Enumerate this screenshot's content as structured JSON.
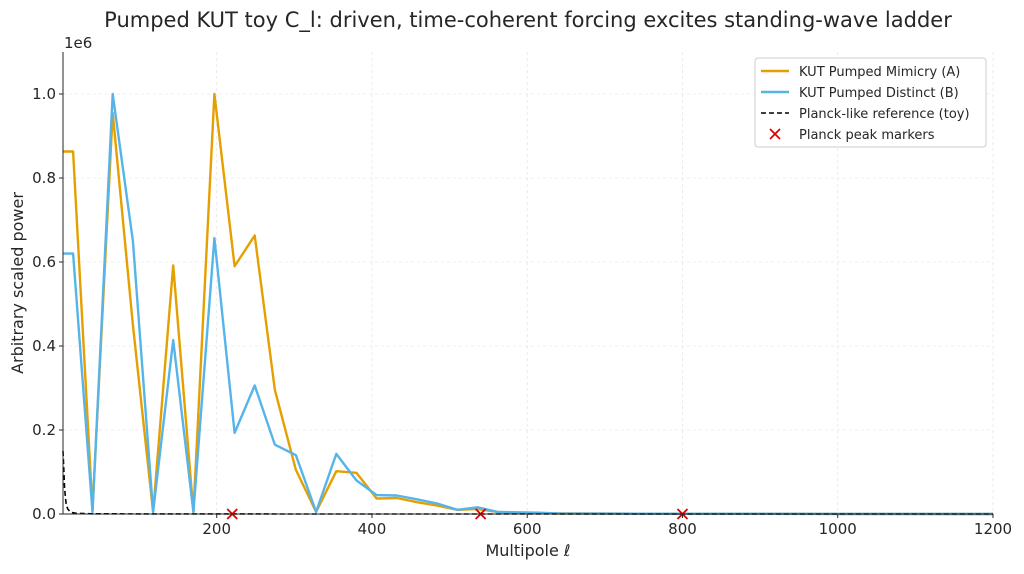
{
  "chart_data": {
    "type": "line",
    "title": "Pumped KUT toy C_l: driven, time-coherent forcing excites standing-wave ladder",
    "xlabel": "Multipole ℓ",
    "ylabel": "Arbitrary scaled power",
    "y_multiplier_label": "1e6",
    "xlim": [
      2,
      1200
    ],
    "ylim": [
      0,
      1100000
    ],
    "x_ticks": [
      200,
      400,
      600,
      800,
      1000,
      1200
    ],
    "y_ticks": [
      0,
      200000,
      400000,
      600000,
      800000,
      1000000
    ],
    "y_tick_labels": [
      "0.0",
      "0.2",
      "0.4",
      "0.6",
      "0.8",
      "1.0"
    ],
    "grid": true,
    "legend_position": "top-right",
    "series": [
      {
        "name": "KUT Pumped Mimicry (A)",
        "color": "#E69F00",
        "style": "solid",
        "points": [
          [
            2,
            863000
          ],
          [
            15,
            863000
          ],
          [
            40,
            10000
          ],
          [
            66,
            955000
          ],
          [
            92,
            450000
          ],
          [
            118,
            5000
          ],
          [
            144,
            592000
          ],
          [
            170,
            5000
          ],
          [
            197,
            1000000
          ],
          [
            223,
            590000
          ],
          [
            249,
            663000
          ],
          [
            275,
            295000
          ],
          [
            302,
            105000
          ],
          [
            328,
            5000
          ],
          [
            354,
            102000
          ],
          [
            380,
            98000
          ],
          [
            406,
            37000
          ],
          [
            432,
            38000
          ],
          [
            458,
            28000
          ],
          [
            484,
            20000
          ],
          [
            510,
            10000
          ],
          [
            536,
            12000
          ],
          [
            562,
            5000
          ],
          [
            588,
            3000
          ],
          [
            614,
            2000
          ],
          [
            640,
            1500
          ],
          [
            700,
            1000
          ],
          [
            800,
            500
          ],
          [
            1000,
            200
          ],
          [
            1200,
            100
          ]
        ]
      },
      {
        "name": "KUT Pumped Distinct (B)",
        "color": "#56B4E9",
        "style": "solid",
        "points": [
          [
            2,
            620000
          ],
          [
            15,
            620000
          ],
          [
            40,
            5000
          ],
          [
            66,
            1000000
          ],
          [
            92,
            650000
          ],
          [
            118,
            5000
          ],
          [
            144,
            414000
          ],
          [
            170,
            5000
          ],
          [
            197,
            657000
          ],
          [
            223,
            193000
          ],
          [
            249,
            306000
          ],
          [
            275,
            165000
          ],
          [
            302,
            140000
          ],
          [
            328,
            5000
          ],
          [
            354,
            143000
          ],
          [
            380,
            80000
          ],
          [
            406,
            45000
          ],
          [
            432,
            44000
          ],
          [
            458,
            35000
          ],
          [
            484,
            25000
          ],
          [
            510,
            10000
          ],
          [
            536,
            16000
          ],
          [
            562,
            5000
          ],
          [
            588,
            4000
          ],
          [
            614,
            3000
          ],
          [
            640,
            1500
          ],
          [
            700,
            1000
          ],
          [
            800,
            500
          ],
          [
            1000,
            200
          ],
          [
            1200,
            100
          ]
        ]
      },
      {
        "name": "Planck-like reference (toy)",
        "color": "#000000",
        "style": "dashed",
        "points": [
          [
            2,
            150000
          ],
          [
            4,
            60000
          ],
          [
            6,
            25000
          ],
          [
            8,
            12000
          ],
          [
            12,
            4000
          ],
          [
            20,
            1500
          ],
          [
            40,
            500
          ],
          [
            100,
            200
          ],
          [
            300,
            100
          ],
          [
            600,
            60
          ],
          [
            1200,
            30
          ]
        ]
      }
    ],
    "markers": {
      "name": "Planck peak markers",
      "color": "#E00000",
      "symbol": "x",
      "points": [
        [
          220,
          0
        ],
        [
          540,
          0
        ],
        [
          800,
          0
        ]
      ]
    }
  }
}
